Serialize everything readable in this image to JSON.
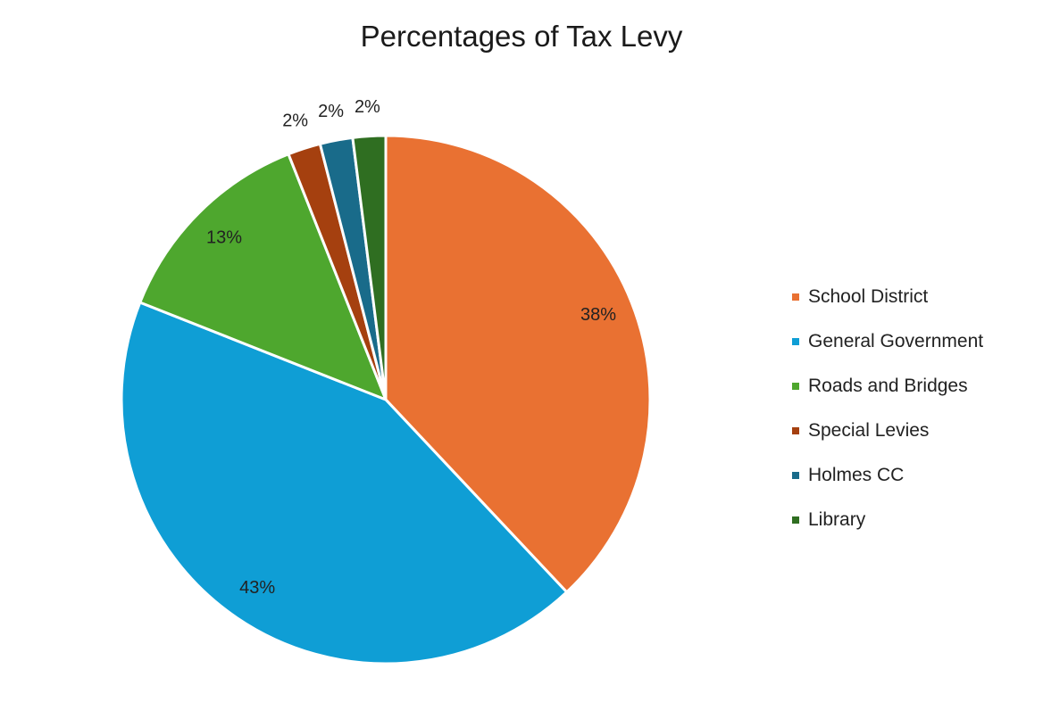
{
  "chart_data": {
    "type": "pie",
    "title": "Percentages of Tax Levy",
    "categories": [
      "School District",
      "General Government",
      "Roads and Bridges",
      "Special Levies",
      "Holmes CC",
      "Library"
    ],
    "values": [
      38,
      43,
      13,
      2,
      2,
      2
    ],
    "labels": [
      "38%",
      "43%",
      "13%",
      "2%",
      "2%",
      "2%"
    ],
    "colors": [
      "#E97132",
      "#0F9ED5",
      "#4EA72E",
      "#A5400F",
      "#196B8A",
      "#2F6E21"
    ],
    "legend_position": "right"
  }
}
